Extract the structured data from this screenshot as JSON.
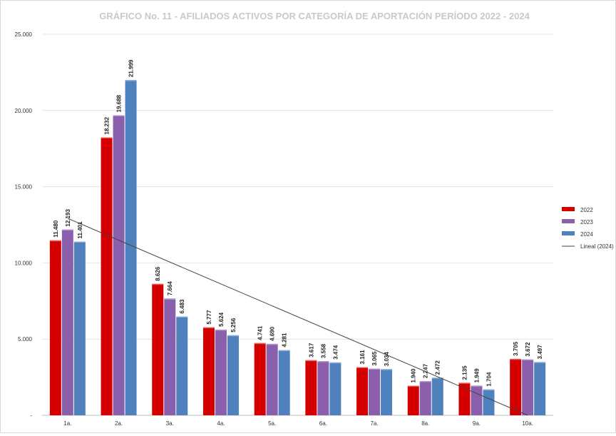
{
  "chart_data": {
    "type": "bar",
    "title": "GRÁFICO No. 11 - AFILIADOS ACTIVOS POR CATEGORÍA DE APORTACIÓN PERÍODO 2022 - 2024",
    "xlabel": "",
    "ylabel": "",
    "ylim": [
      0,
      25000
    ],
    "yticks": [
      {
        "value": 0,
        "label": "-"
      },
      {
        "value": 5000,
        "label": "5.000"
      },
      {
        "value": 10000,
        "label": "10.000"
      },
      {
        "value": 15000,
        "label": "15.000"
      },
      {
        "value": 20000,
        "label": "20.000"
      },
      {
        "value": 25000,
        "label": "25.000"
      }
    ],
    "grid": true,
    "legend_position": "right",
    "categories": [
      "1a.",
      "2a.",
      "3a.",
      "4a.",
      "5a.",
      "6a.",
      "7a.",
      "8a.",
      "9a.",
      "10a."
    ],
    "series": [
      {
        "name": "2022",
        "color": "#d40000",
        "values": [
          11480,
          18232,
          8626,
          5777,
          4741,
          3617,
          3161,
          1940,
          2135,
          3705
        ],
        "labels": [
          "11.480",
          "18.232",
          "8.626",
          "5.777",
          "4.741",
          "3.617",
          "3.161",
          "1.940",
          "2.135",
          "3.705"
        ]
      },
      {
        "name": "2023",
        "color": "#8a5fac",
        "values": [
          12193,
          19688,
          7664,
          5624,
          4690,
          3558,
          3065,
          2247,
          1949,
          3672
        ],
        "labels": [
          "12.193",
          "19.688",
          "7.664",
          "5.624",
          "4.690",
          "3.558",
          "3.065",
          "2.247",
          "1.949",
          "3.672"
        ]
      },
      {
        "name": "2024",
        "color": "#4f81bd",
        "values": [
          11401,
          21999,
          6483,
          5256,
          4281,
          3474,
          3034,
          2472,
          1704,
          3497
        ],
        "labels": [
          "11.401",
          "21.999",
          "6.483",
          "5.256",
          "4.281",
          "3.474",
          "3.034",
          "2.472",
          "1.704",
          "3.497"
        ]
      }
    ],
    "trendline": {
      "name": "Lineal (2024)",
      "series": "2024",
      "type": "linear",
      "color": "#444444"
    }
  }
}
